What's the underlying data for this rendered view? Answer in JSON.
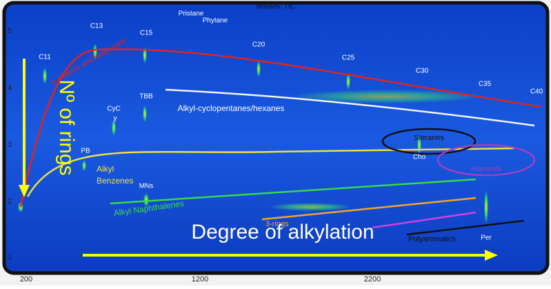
{
  "plot": {
    "title": "Masses: TIC",
    "y_ticks": [
      "5",
      "4",
      "3",
      "2",
      "1"
    ],
    "x_ticks": [
      "200",
      "1200",
      "2200"
    ],
    "compound_labels": [
      "C11",
      "C13",
      "C15",
      "Pristane",
      "Phytane",
      "C20",
      "C25",
      "C30",
      "C35",
      "C40",
      "CyC",
      "y",
      "TBB",
      "PB",
      "MNs",
      "Cho",
      "Per"
    ],
    "group_labels": {
      "alkanes": "n-alkanes and isoalkanes",
      "cyclo": "Alkyl-cyclopentanes/hexanes",
      "steranes": "Steranes",
      "hopanes": "Hopanes",
      "benz1": "Alkyl",
      "benz2": "Benzenes",
      "naph": "Alkyl Naphthalenes",
      "rings3": "3-rings",
      "poly": "Polyaromatics"
    },
    "annotations": {
      "rings": "Nº of rings",
      "alkylation": "Degree of alkylation"
    }
  }
}
